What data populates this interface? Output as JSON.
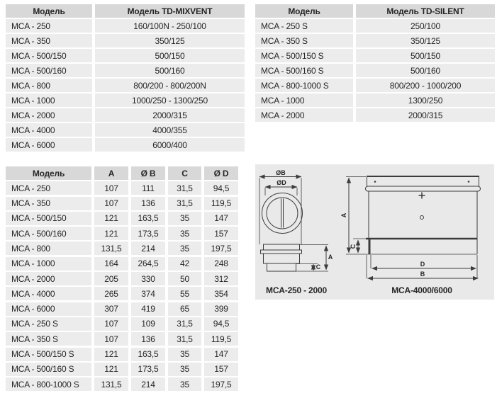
{
  "tables": {
    "mixvent": {
      "headers": [
        "Модель",
        "Модель TD-MIXVENT"
      ],
      "rows": [
        [
          "MCA - 250",
          "160/100N - 250/100"
        ],
        [
          "MCA - 350",
          "350/125"
        ],
        [
          "MCA - 500/150",
          "500/150"
        ],
        [
          "MCA - 500/160",
          "500/160"
        ],
        [
          "MCA - 800",
          "800/200 - 800/200N"
        ],
        [
          "MCA - 1000",
          "1000/250 - 1300/250"
        ],
        [
          "MCA - 2000",
          "2000/315"
        ],
        [
          "MCA - 4000",
          "4000/355"
        ],
        [
          "MCA - 6000",
          "6000/400"
        ]
      ]
    },
    "silent": {
      "headers": [
        "Модель",
        "Модель TD-SILENT"
      ],
      "rows": [
        [
          "MCA - 250 S",
          "250/100"
        ],
        [
          "MCA - 350 S",
          "350/125"
        ],
        [
          "MCA - 500/150 S",
          "500/150"
        ],
        [
          "MCA - 500/160 S",
          "500/160"
        ],
        [
          "MCA - 800-1000 S",
          "800/200 - 1000/200"
        ],
        [
          "MCA - 1000",
          "1300/250"
        ],
        [
          "MCA - 2000",
          "2000/315"
        ]
      ]
    },
    "dimensions": {
      "headers": [
        "Модель",
        "A",
        "Ø B",
        "C",
        "Ø D"
      ],
      "rows": [
        [
          "MCA - 250",
          "107",
          "111",
          "31,5",
          "94,5"
        ],
        [
          "MCA - 350",
          "107",
          "136",
          "31,5",
          "119,5"
        ],
        [
          "MCA - 500/150",
          "121",
          "163,5",
          "35",
          "147"
        ],
        [
          "MCA - 500/160",
          "121",
          "173,5",
          "35",
          "157"
        ],
        [
          "MCA - 800",
          "131,5",
          "214",
          "35",
          "197,5"
        ],
        [
          "MCA - 1000",
          "164",
          "264,5",
          "42",
          "248"
        ],
        [
          "MCA - 2000",
          "205",
          "330",
          "50",
          "312"
        ],
        [
          "MCA - 4000",
          "265",
          "374",
          "55",
          "354"
        ],
        [
          "MCA - 6000",
          "307",
          "419",
          "65",
          "399"
        ],
        [
          "MCA - 250 S",
          "107",
          "109",
          "31,5",
          "94,5"
        ],
        [
          "MCA - 350 S",
          "107",
          "136",
          "31,5",
          "119,5"
        ],
        [
          "MCA - 500/150 S",
          "121",
          "163,5",
          "35",
          "147"
        ],
        [
          "MCA - 500/160 S",
          "121",
          "173,5",
          "35",
          "157"
        ],
        [
          "MCA - 800-1000 S",
          "131,5",
          "214",
          "35",
          "197,5"
        ]
      ]
    }
  },
  "diagram": {
    "labels": {
      "ob": "ØB",
      "od": "ØD",
      "a_left": "A",
      "c_left": "C",
      "a_right": "A",
      "c_right": "C",
      "d": "D",
      "b": "B"
    },
    "left_caption": "MCA-250 - 2000",
    "right_caption": "MCA-4000/6000"
  },
  "colors": {
    "header_bg": "#d8d8d8",
    "row_bg": "#ececec",
    "panel_bg": "#e9e9e9",
    "text": "#262626",
    "line": "#3c3c3c"
  }
}
